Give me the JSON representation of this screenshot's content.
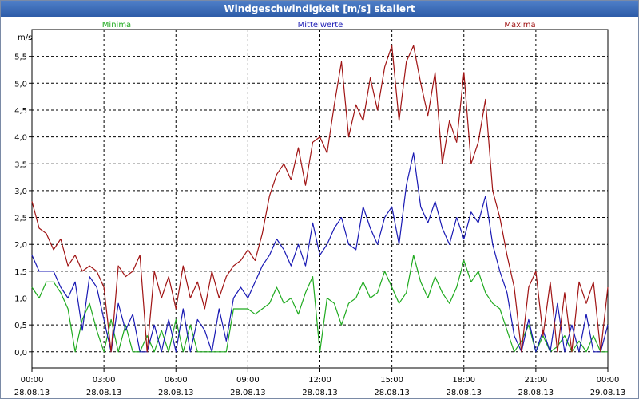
{
  "chart_data": {
    "type": "line",
    "title": "Windgeschwindigkeit [m/s] skaliert",
    "ylabel": "m/s",
    "xlabel": "",
    "ylim": [
      -0.3,
      6.0
    ],
    "xlim": [
      0,
      24
    ],
    "grid": true,
    "legend_position": "top",
    "y_ticks": [
      "0,0",
      "0,5",
      "1,0",
      "1,5",
      "2,0",
      "2,5",
      "3,0",
      "3,5",
      "4,0",
      "4,5",
      "5,0",
      "5,5"
    ],
    "x_ticks": [
      {
        "time": "00:00",
        "date": "28.08.13"
      },
      {
        "time": "03:00",
        "date": "28.08.13"
      },
      {
        "time": "06:00",
        "date": "28.08.13"
      },
      {
        "time": "09:00",
        "date": "28.08.13"
      },
      {
        "time": "12:00",
        "date": "28.08.13"
      },
      {
        "time": "15:00",
        "date": "28.08.13"
      },
      {
        "time": "18:00",
        "date": "28.08.13"
      },
      {
        "time": "21:00",
        "date": "28.08.13"
      },
      {
        "time": "00:00",
        "date": "29.08.13"
      }
    ],
    "series": [
      {
        "name": "Minima",
        "color": "#1faa1f",
        "x": [
          0,
          0.3,
          0.6,
          0.9,
          1.2,
          1.5,
          1.8,
          2.1,
          2.4,
          2.7,
          3.0,
          3.3,
          3.6,
          3.9,
          4.2,
          4.5,
          4.8,
          5.1,
          5.4,
          5.7,
          6.0,
          6.3,
          6.6,
          6.9,
          7.2,
          7.5,
          7.8,
          8.1,
          8.4,
          8.7,
          9.0,
          9.3,
          9.6,
          9.9,
          10.2,
          10.5,
          10.8,
          11.1,
          11.4,
          11.7,
          12.0,
          12.3,
          12.6,
          12.9,
          13.2,
          13.5,
          13.8,
          14.1,
          14.4,
          14.7,
          15.0,
          15.3,
          15.6,
          15.9,
          16.2,
          16.5,
          16.8,
          17.1,
          17.4,
          17.7,
          18.0,
          18.3,
          18.6,
          18.9,
          19.2,
          19.5,
          19.8,
          20.1,
          20.4,
          20.7,
          21.0,
          21.3,
          21.6,
          21.9,
          22.2,
          22.5,
          22.8,
          23.1,
          23.4,
          23.7,
          24.0
        ],
        "values": [
          1.2,
          1.0,
          1.3,
          1.3,
          1.1,
          0.8,
          0.0,
          0.6,
          0.9,
          0.4,
          0.0,
          0.6,
          0.0,
          0.5,
          0.0,
          0.0,
          0.3,
          0.0,
          0.4,
          0.0,
          0.6,
          0.0,
          0.5,
          0.0,
          0.0,
          0.0,
          0.0,
          0.0,
          0.8,
          0.8,
          0.8,
          0.7,
          0.8,
          0.9,
          1.2,
          0.9,
          1.0,
          0.7,
          1.1,
          1.4,
          0.0,
          1.0,
          0.9,
          0.5,
          0.9,
          1.0,
          1.3,
          1.0,
          1.1,
          1.5,
          1.2,
          0.9,
          1.1,
          1.8,
          1.3,
          1.0,
          1.4,
          1.1,
          0.9,
          1.2,
          1.7,
          1.3,
          1.5,
          1.1,
          0.9,
          0.8,
          0.4,
          0.0,
          0.2,
          0.5,
          0.0,
          0.3,
          0.0,
          0.1,
          0.3,
          0.0,
          0.2,
          0.0,
          0.3,
          0.0,
          0.0
        ]
      },
      {
        "name": "Mittelwerte",
        "color": "#1a1ab4",
        "x": [
          0,
          0.3,
          0.6,
          0.9,
          1.2,
          1.5,
          1.8,
          2.1,
          2.4,
          2.7,
          3.0,
          3.3,
          3.6,
          3.9,
          4.2,
          4.5,
          4.8,
          5.1,
          5.4,
          5.7,
          6.0,
          6.3,
          6.6,
          6.9,
          7.2,
          7.5,
          7.8,
          8.1,
          8.4,
          8.7,
          9.0,
          9.3,
          9.6,
          9.9,
          10.2,
          10.5,
          10.8,
          11.1,
          11.4,
          11.7,
          12.0,
          12.3,
          12.6,
          12.9,
          13.2,
          13.5,
          13.8,
          14.1,
          14.4,
          14.7,
          15.0,
          15.3,
          15.6,
          15.9,
          16.2,
          16.5,
          16.8,
          17.1,
          17.4,
          17.7,
          18.0,
          18.3,
          18.6,
          18.9,
          19.2,
          19.5,
          19.8,
          20.1,
          20.4,
          20.7,
          21.0,
          21.3,
          21.6,
          21.9,
          22.2,
          22.5,
          22.8,
          23.1,
          23.4,
          23.7,
          24.0
        ],
        "values": [
          1.8,
          1.5,
          1.5,
          1.5,
          1.2,
          1.0,
          1.3,
          0.4,
          1.4,
          1.2,
          0.6,
          0.0,
          0.9,
          0.4,
          0.7,
          0.0,
          0.0,
          0.5,
          0.0,
          0.6,
          0.0,
          0.8,
          0.0,
          0.6,
          0.4,
          0.0,
          0.8,
          0.2,
          1.0,
          1.2,
          1.0,
          1.3,
          1.6,
          1.8,
          2.1,
          1.9,
          1.6,
          2.0,
          1.6,
          2.4,
          1.8,
          2.0,
          2.3,
          2.5,
          2.0,
          1.9,
          2.7,
          2.3,
          2.0,
          2.5,
          2.7,
          2.0,
          3.1,
          3.7,
          2.7,
          2.4,
          2.8,
          2.3,
          2.0,
          2.5,
          2.1,
          2.6,
          2.4,
          2.9,
          2.0,
          1.5,
          1.1,
          0.3,
          0.0,
          0.6,
          0.0,
          0.4,
          0.0,
          0.9,
          0.0,
          0.5,
          0.0,
          0.7,
          0.0,
          0.0,
          0.5
        ]
      },
      {
        "name": "Maxima",
        "color": "#a01414",
        "x": [
          0,
          0.3,
          0.6,
          0.9,
          1.2,
          1.5,
          1.8,
          2.1,
          2.4,
          2.7,
          3.0,
          3.3,
          3.6,
          3.9,
          4.2,
          4.5,
          4.8,
          5.1,
          5.4,
          5.7,
          6.0,
          6.3,
          6.6,
          6.9,
          7.2,
          7.5,
          7.8,
          8.1,
          8.4,
          8.7,
          9.0,
          9.3,
          9.6,
          9.9,
          10.2,
          10.5,
          10.8,
          11.1,
          11.4,
          11.7,
          12.0,
          12.3,
          12.6,
          12.9,
          13.2,
          13.5,
          13.8,
          14.1,
          14.4,
          14.7,
          15.0,
          15.3,
          15.6,
          15.9,
          16.2,
          16.5,
          16.8,
          17.1,
          17.4,
          17.7,
          18.0,
          18.3,
          18.6,
          18.9,
          19.2,
          19.5,
          19.8,
          20.1,
          20.4,
          20.7,
          21.0,
          21.3,
          21.6,
          21.9,
          22.2,
          22.5,
          22.8,
          23.1,
          23.4,
          23.7,
          24.0
        ],
        "values": [
          2.8,
          2.3,
          2.2,
          1.9,
          2.1,
          1.6,
          1.8,
          1.5,
          1.6,
          1.5,
          1.2,
          0.0,
          1.6,
          1.4,
          1.5,
          1.8,
          0.0,
          1.5,
          1.0,
          1.4,
          0.8,
          1.6,
          1.0,
          1.3,
          0.8,
          1.5,
          1.0,
          1.4,
          1.6,
          1.7,
          1.9,
          1.7,
          2.2,
          2.9,
          3.3,
          3.5,
          3.2,
          3.8,
          3.1,
          3.9,
          4.0,
          3.7,
          4.6,
          5.4,
          4.0,
          4.6,
          4.3,
          5.1,
          4.5,
          5.3,
          5.7,
          4.3,
          5.4,
          5.7,
          5.0,
          4.4,
          5.2,
          3.5,
          4.3,
          3.9,
          5.2,
          3.5,
          3.9,
          4.7,
          3.0,
          2.5,
          1.8,
          1.2,
          0.0,
          1.2,
          1.5,
          0.3,
          1.3,
          0.0,
          1.1,
          0.0,
          1.3,
          0.9,
          1.3,
          0.0,
          1.2
        ]
      }
    ]
  }
}
